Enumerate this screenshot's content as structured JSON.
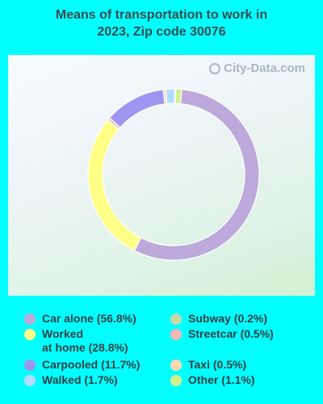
{
  "title": {
    "line1": "Means of transportation to work in",
    "line2": "2023, Zip code 30076"
  },
  "watermark": "City-Data.com",
  "chart_data": {
    "type": "pie",
    "donut": true,
    "title": "Means of transportation to work in 2023, Zip code 30076",
    "legend_position": "bottom",
    "series": [
      {
        "name": "Car alone",
        "label": "Car alone (56.8%)",
        "value": 56.8,
        "color": "#bda9dc"
      },
      {
        "name": "Worked at home",
        "label": "Worked\nat home (28.8%)",
        "value": 28.8,
        "color": "#ffff88"
      },
      {
        "name": "Streetcar",
        "label": "Streetcar (0.5%)",
        "value": 0.5,
        "color": "#f4b6b6"
      },
      {
        "name": "Carpooled",
        "label": "Carpooled (11.7%)",
        "value": 11.7,
        "color": "#9b96f0"
      },
      {
        "name": "Taxi",
        "label": "Taxi (0.5%)",
        "value": 0.5,
        "color": "#ffd8b0"
      },
      {
        "name": "Walked",
        "label": "Walked (1.7%)",
        "value": 1.7,
        "color": "#b2dcff"
      },
      {
        "name": "Subway",
        "label": "Subway (0.2%)",
        "value": 0.2,
        "color": "#c6d9a8"
      },
      {
        "name": "Other",
        "label": "Other (1.1%)",
        "value": 1.1,
        "color": "#d3f08a"
      }
    ],
    "legend_order": [
      "Car alone",
      "Worked at home",
      "Carpooled",
      "Walked",
      "Subway",
      "Streetcar",
      "Taxi",
      "Other"
    ]
  }
}
